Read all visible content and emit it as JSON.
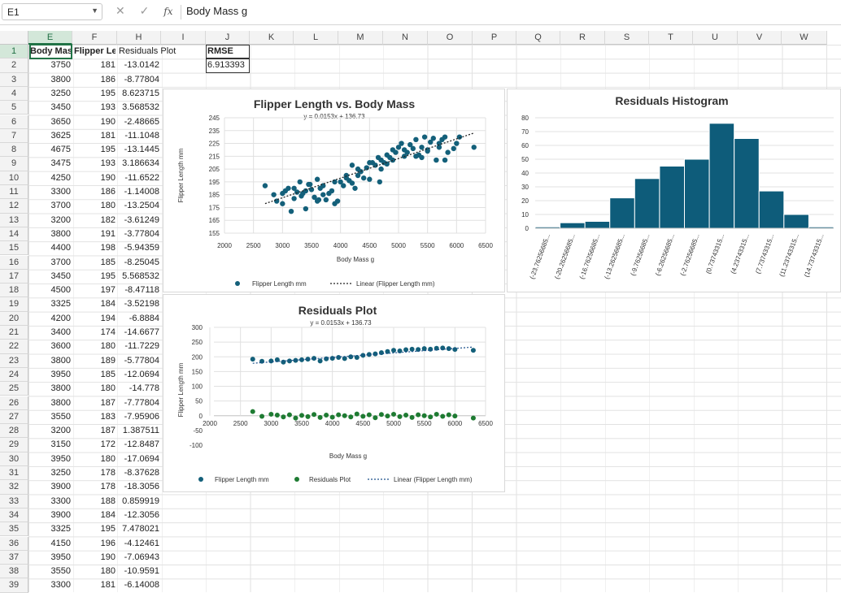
{
  "formula_bar": {
    "name_box": "E1",
    "formula": "Body Mass g",
    "fx": "fx"
  },
  "columns": [
    "E",
    "F",
    "H",
    "I",
    "J",
    "K",
    "L",
    "M",
    "N",
    "O",
    "P",
    "Q",
    "R",
    "S",
    "T",
    "U",
    "V",
    "W"
  ],
  "headers": {
    "e1": "Body Mass g",
    "f1": "Flipper Length mm",
    "h1": "Residuals Plot",
    "j1": "RMSE",
    "j2": "6.913393"
  },
  "rows": [
    [
      "2",
      "3750",
      "181",
      "-13.0142"
    ],
    [
      "3",
      "3800",
      "186",
      "-8.77804"
    ],
    [
      "4",
      "3250",
      "195",
      "8.623715"
    ],
    [
      "5",
      "3450",
      "193",
      "3.568532"
    ],
    [
      "6",
      "3650",
      "190",
      "-2.48665"
    ],
    [
      "7",
      "3625",
      "181",
      "-11.1048"
    ],
    [
      "8",
      "4675",
      "195",
      "-13.1445"
    ],
    [
      "9",
      "3475",
      "193",
      "3.186634"
    ],
    [
      "10",
      "4250",
      "190",
      "-11.6522"
    ],
    [
      "11",
      "3300",
      "186",
      "-1.14008"
    ],
    [
      "12",
      "3700",
      "180",
      "-13.2504"
    ],
    [
      "13",
      "3200",
      "182",
      "-3.61249"
    ],
    [
      "14",
      "3800",
      "191",
      "-3.77804"
    ],
    [
      "15",
      "4400",
      "198",
      "-5.94359"
    ],
    [
      "16",
      "3700",
      "185",
      "-8.25045"
    ],
    [
      "17",
      "3450",
      "195",
      "5.568532"
    ],
    [
      "18",
      "4500",
      "197",
      "-8.47118"
    ],
    [
      "19",
      "3325",
      "184",
      "-3.52198"
    ],
    [
      "20",
      "4200",
      "194",
      "-6.8884"
    ],
    [
      "21",
      "3400",
      "174",
      "-14.6677"
    ],
    [
      "22",
      "3600",
      "180",
      "-11.7229"
    ],
    [
      "23",
      "3800",
      "189",
      "-5.77804"
    ],
    [
      "24",
      "3950",
      "185",
      "-12.0694"
    ],
    [
      "25",
      "3800",
      "180",
      "-14.778"
    ],
    [
      "26",
      "3800",
      "187",
      "-7.77804"
    ],
    [
      "27",
      "3550",
      "183",
      "-7.95906"
    ],
    [
      "28",
      "3200",
      "187",
      "1.387511"
    ],
    [
      "29",
      "3150",
      "172",
      "-12.8487"
    ],
    [
      "30",
      "3950",
      "180",
      "-17.0694"
    ],
    [
      "31",
      "3250",
      "178",
      "-8.37628"
    ],
    [
      "32",
      "3900",
      "178",
      "-18.3056"
    ],
    [
      "33",
      "3300",
      "188",
      "0.859919"
    ],
    [
      "34",
      "3900",
      "184",
      "-12.3056"
    ],
    [
      "35",
      "3325",
      "195",
      "7.478021"
    ],
    [
      "36",
      "4150",
      "196",
      "-4.12461"
    ],
    [
      "37",
      "3950",
      "190",
      "-7.06943"
    ],
    [
      "38",
      "3550",
      "180",
      "-10.9591"
    ],
    [
      "39",
      "3300",
      "181",
      "-6.14008"
    ]
  ],
  "colors": {
    "series_blue": "#14607a",
    "series_green": "#1e7b32",
    "hist_fill": "#0e5c7a",
    "select_green": "#217346"
  },
  "chart_data": [
    {
      "type": "scatter",
      "title": "Flipper Length vs. Body Mass",
      "subtitle": "y = 0.0153x + 136.73",
      "xlabel": "Body Mass g",
      "ylabel": "Flipper Length mm",
      "xlim": [
        2000,
        6500
      ],
      "ylim": [
        155,
        245
      ],
      "xticks": [
        "2000",
        "2500",
        "3000",
        "3500",
        "4000",
        "4500",
        "5000",
        "5500",
        "6000",
        "6500"
      ],
      "yticks": [
        "155",
        "165",
        "175",
        "185",
        "195",
        "205",
        "215",
        "225",
        "235",
        "245"
      ],
      "trendline": {
        "slope": 0.0153,
        "intercept": 136.73
      },
      "legend": [
        "Flipper Length mm",
        "Linear (Flipper Length mm)"
      ],
      "legend_position": "bottom",
      "series": [
        {
          "name": "Flipper Length mm",
          "x": [
            2700,
            2850,
            2900,
            3000,
            3050,
            3100,
            3150,
            3200,
            3250,
            3300,
            3325,
            3350,
            3400,
            3450,
            3475,
            3500,
            3550,
            3600,
            3625,
            3650,
            3700,
            3750,
            3800,
            3850,
            3900,
            3950,
            4000,
            4050,
            4100,
            4150,
            4200,
            4250,
            4300,
            4350,
            4400,
            4450,
            4500,
            4550,
            4600,
            4650,
            4675,
            4700,
            4750,
            4800,
            4850,
            4900,
            4950,
            5000,
            5050,
            5100,
            5150,
            5200,
            5250,
            5300,
            5350,
            5400,
            5450,
            5500,
            5550,
            5600,
            5650,
            5700,
            5750,
            5800,
            5850,
            5950,
            6000,
            6050,
            6300,
            3200,
            3400,
            3700,
            3900,
            4100,
            4300,
            4500,
            4700,
            4900,
            5100,
            5300,
            5500,
            5700,
            3000,
            3600,
            4200,
            4800,
            5400,
            5800
          ],
          "y": [
            192,
            185,
            180,
            186,
            188,
            190,
            172,
            182,
            187,
            195,
            184,
            186,
            174,
            193,
            193,
            189,
            183,
            180,
            181,
            190,
            185,
            181,
            186,
            188,
            178,
            180,
            195,
            192,
            198,
            196,
            194,
            190,
            200,
            203,
            198,
            206,
            197,
            210,
            208,
            214,
            195,
            212,
            210,
            216,
            214,
            220,
            218,
            222,
            225,
            215,
            218,
            224,
            221,
            228,
            216,
            222,
            230,
            220,
            226,
            229,
            212,
            222,
            228,
            230,
            218,
            221,
            225,
            230,
            222,
            190,
            188,
            192,
            195,
            200,
            205,
            210,
            205,
            212,
            220,
            215,
            219,
            225,
            178,
            197,
            208,
            209,
            214,
            212
          ]
        }
      ]
    },
    {
      "type": "scatter",
      "title": "Residuals Plot",
      "subtitle": "y = 0.0153x + 136.73",
      "xlabel": "Body Mass g",
      "ylabel": "Flipper Length mm",
      "xlim": [
        2000,
        6500
      ],
      "ylim": [
        -100,
        300
      ],
      "xticks": [
        "2000",
        "2500",
        "3000",
        "3500",
        "4000",
        "4500",
        "5000",
        "5500",
        "6000",
        "6500"
      ],
      "yticks": [
        "-100",
        "-50",
        "0",
        "50",
        "100",
        "150",
        "200",
        "250",
        "300"
      ],
      "trendline": {
        "slope": 0.0153,
        "intercept": 136.73
      },
      "legend": [
        "Flipper Length mm",
        "Residuals Plot",
        "Linear (Flipper Length mm)"
      ],
      "legend_position": "bottom",
      "series": [
        {
          "name": "Flipper Length mm",
          "x": [
            2700,
            2850,
            3000,
            3100,
            3200,
            3300,
            3400,
            3500,
            3600,
            3700,
            3800,
            3900,
            4000,
            4100,
            4200,
            4300,
            4400,
            4500,
            4600,
            4700,
            4800,
            4900,
            5000,
            5100,
            5200,
            5300,
            5400,
            5500,
            5600,
            5700,
            5800,
            5900,
            6000,
            6300
          ],
          "y": [
            192,
            185,
            186,
            190,
            182,
            186,
            188,
            190,
            192,
            195,
            186,
            193,
            195,
            198,
            194,
            200,
            198,
            205,
            208,
            210,
            214,
            218,
            222,
            220,
            224,
            226,
            225,
            228,
            226,
            229,
            230,
            228,
            225,
            222
          ]
        },
        {
          "name": "Residuals Plot",
          "x": [
            2700,
            2850,
            3000,
            3100,
            3200,
            3300,
            3400,
            3500,
            3600,
            3700,
            3800,
            3900,
            4000,
            4100,
            4200,
            4300,
            4400,
            4500,
            4600,
            4700,
            4800,
            4900,
            5000,
            5100,
            5200,
            5300,
            5400,
            5500,
            5600,
            5700,
            5800,
            5900,
            6000,
            6300
          ],
          "y": [
            14,
            -2,
            5,
            2,
            -4,
            3,
            -8,
            1,
            -3,
            4,
            -6,
            2,
            -5,
            3,
            0,
            -4,
            6,
            -2,
            3,
            -7,
            4,
            -1,
            5,
            -3,
            2,
            -6,
            3,
            0,
            -4,
            5,
            -2,
            3,
            -1,
            -8
          ]
        }
      ]
    },
    {
      "type": "bar",
      "title": "Residuals Histogram",
      "categories": [
        "(-23.76256685...",
        "(-20.26256685...",
        "(-16.76256685...",
        "(-13.26256685...",
        "(-9.76256685...",
        "(-6.26256685...",
        "(-2.76256685...",
        "(0.73743315...",
        "(4.23743315...",
        "(7.73743315...",
        "(11.23743315...",
        "(14.73743315..."
      ],
      "values": [
        1,
        4,
        5,
        22,
        36,
        45,
        50,
        76,
        65,
        27,
        10,
        1
      ],
      "ylim": [
        0,
        80
      ],
      "yticks": [
        "0",
        "10",
        "20",
        "30",
        "40",
        "50",
        "60",
        "70",
        "80"
      ]
    }
  ]
}
